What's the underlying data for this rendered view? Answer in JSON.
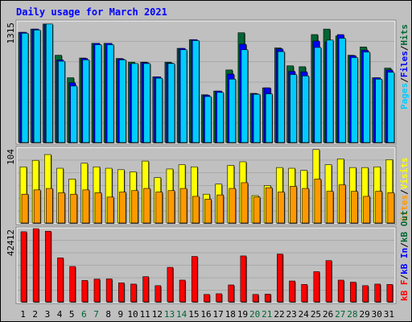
{
  "title": "Daily usage for March 2021",
  "colors": {
    "background": "#c0c0c0",
    "hits": "#00ccff",
    "files": "#0000ff",
    "pages": "#006633",
    "visits": "#ffff00",
    "sites": "#ff9900",
    "kb": "#ff0000",
    "weekend_label": "#006633",
    "weekday_label": "#000000"
  },
  "top_panel": {
    "max_label": "1315",
    "legend": {
      "pages": "Pages",
      "files": "Files",
      "hits": "Hits",
      "sep": "/"
    }
  },
  "mid_panel": {
    "max_label": "104",
    "legend": {
      "sites": "Sites",
      "visits": "Visits",
      "sep": "/"
    }
  },
  "bottom_panel": {
    "max_label": "42412",
    "legend": {
      "kb_f": "kB F",
      "kb_in": "kB In",
      "kb_out": "kB Out",
      "sep": "/"
    }
  },
  "chart_data": {
    "type": "bar",
    "title": "Daily usage for March 2021",
    "categories": [
      "1",
      "2",
      "3",
      "4",
      "5",
      "6",
      "7",
      "8",
      "9",
      "10",
      "11",
      "12",
      "13",
      "14",
      "15",
      "16",
      "17",
      "18",
      "19",
      "20",
      "21",
      "22",
      "23",
      "24",
      "25",
      "26",
      "27",
      "28",
      "29",
      "30",
      "31"
    ],
    "weekend_days": [
      "6",
      "7",
      "13",
      "14",
      "20",
      "21",
      "27",
      "28"
    ],
    "panels": [
      {
        "name": "hits-files-pages",
        "ymax": 1315,
        "series": [
          {
            "name": "Pages",
            "values": [
              1200,
              1235,
              1290,
              950,
              705,
              920,
              1080,
              1080,
              915,
              875,
              875,
              715,
              875,
              1025,
              1120,
              520,
              560,
              790,
              1195,
              535,
              595,
              1030,
              835,
              825,
              1175,
              1235,
              1160,
              950,
              1040,
              705,
              810
            ]
          },
          {
            "name": "Files",
            "values": [
              1200,
              1235,
              1290,
              900,
              650,
              915,
              1080,
              1080,
              910,
              855,
              870,
              715,
              865,
              1025,
              1120,
              515,
              560,
              745,
              1070,
              530,
              595,
              1020,
              775,
              770,
              1105,
              1095,
              1175,
              945,
              1005,
              705,
              790
            ]
          },
          {
            "name": "Hits",
            "values": [
              1190,
              1225,
              1290,
              885,
              615,
              900,
              1065,
              1065,
              900,
              860,
              860,
              700,
              860,
              1010,
              1110,
              500,
              545,
              690,
              1010,
              525,
              530,
              990,
              740,
              725,
              1035,
              1115,
              1135,
              925,
              985,
              690,
              765
            ]
          }
        ]
      },
      {
        "name": "visits-sites",
        "ymax": 104,
        "series": [
          {
            "name": "Visits",
            "values": [
              78,
              87,
              95,
              76,
              61,
              83,
              78,
              76,
              74,
              71,
              86,
              63,
              75,
              81,
              78,
              40,
              54,
              80,
              85,
              38,
              52,
              77,
              76,
              73,
              102,
              81,
              89,
              77,
              77,
              78,
              88
            ]
          },
          {
            "name": "Sites",
            "values": [
              40,
              46,
              48,
              42,
              40,
              46,
              42,
              36,
              43,
              45,
              48,
              43,
              45,
              48,
              37,
              33,
              39,
              48,
              56,
              36,
              49,
              43,
              51,
              48,
              61,
              44,
              53,
              44,
              37,
              44,
              42
            ]
          }
        ]
      },
      {
        "name": "kbytes",
        "ymax": 42412,
        "series": [
          {
            "name": "kB F",
            "values": [
              40600,
              42412,
              40900,
              25500,
              20500,
              12400,
              13200,
              13300,
              11000,
              10300,
              14600,
              9400,
              20000,
              12600,
              26300,
              4300,
              4700,
              9800,
              26600,
              4300,
              4500,
              27700,
              12100,
              10100,
              17500,
              23900,
              12600,
              11400,
              9400,
              10300,
              10100
            ]
          }
        ]
      }
    ]
  }
}
